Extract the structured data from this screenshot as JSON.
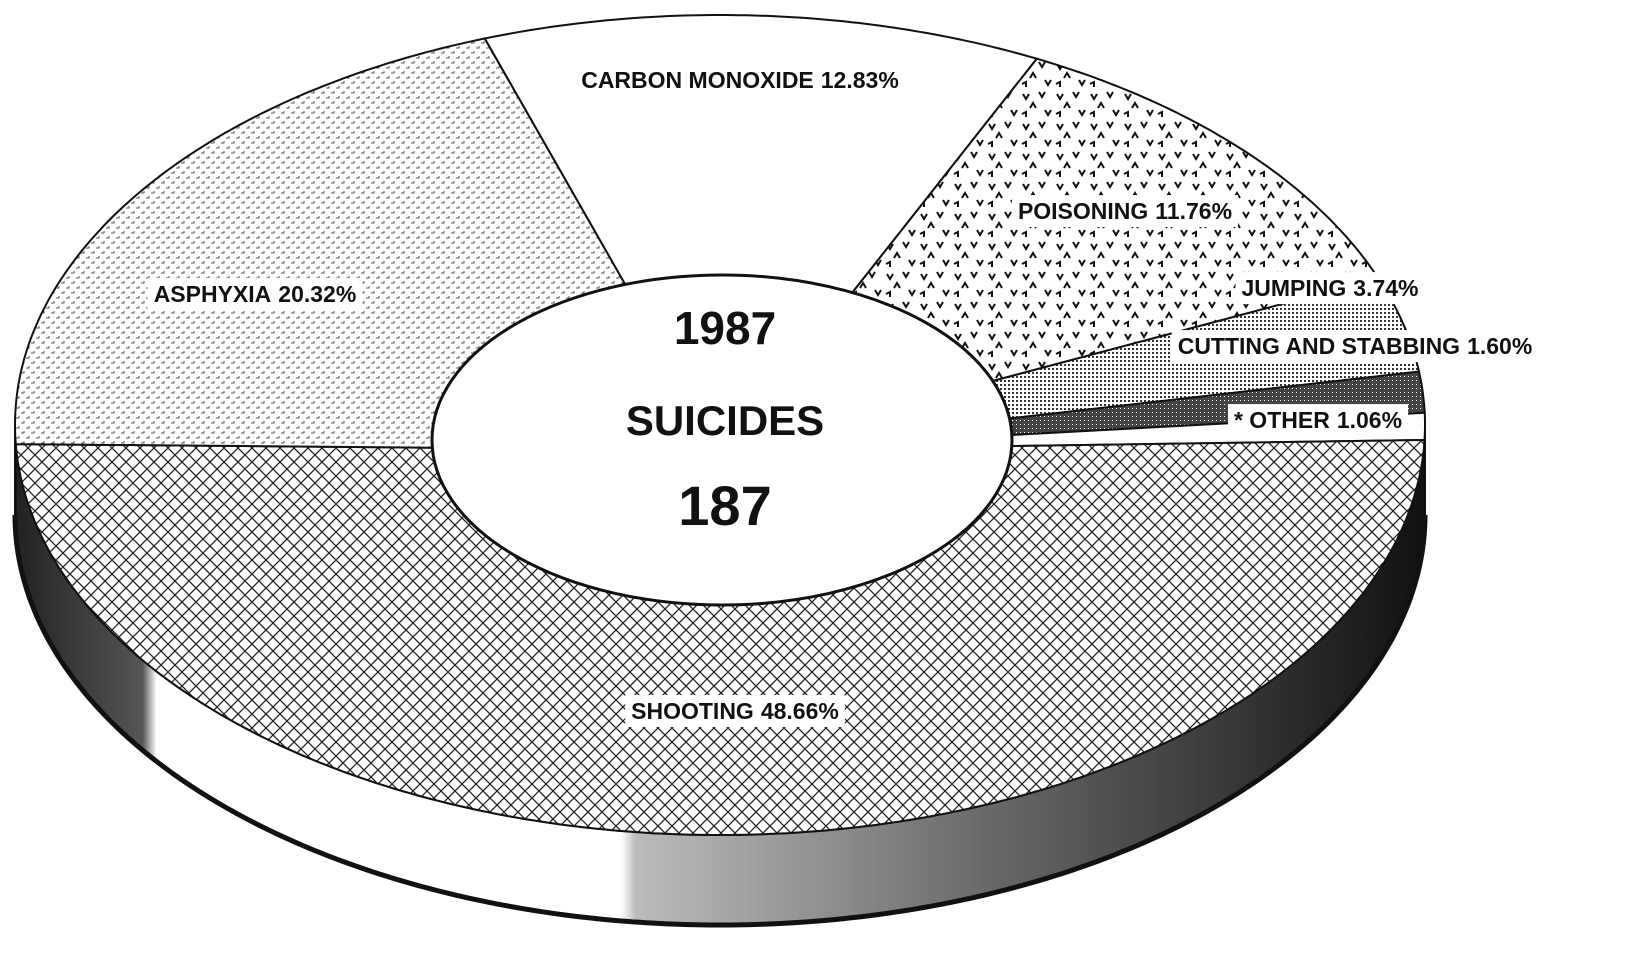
{
  "chart_data": {
    "type": "donut3d",
    "center_labels": [
      "1987",
      "SUICIDES",
      "187"
    ],
    "categories": [
      "CARBON MONOXIDE",
      "POISONING",
      "JUMPING",
      "CUTTING AND STABBING",
      "* OTHER",
      "SHOOTING",
      "ASPHYXIA"
    ],
    "values": [
      12.83,
      11.76,
      3.74,
      1.6,
      1.06,
      48.66,
      20.32
    ],
    "value_labels": [
      "12.83%",
      "11.76%",
      "3.74%",
      "1.60%",
      "1.06%",
      "48.66%",
      "20.32%"
    ]
  }
}
